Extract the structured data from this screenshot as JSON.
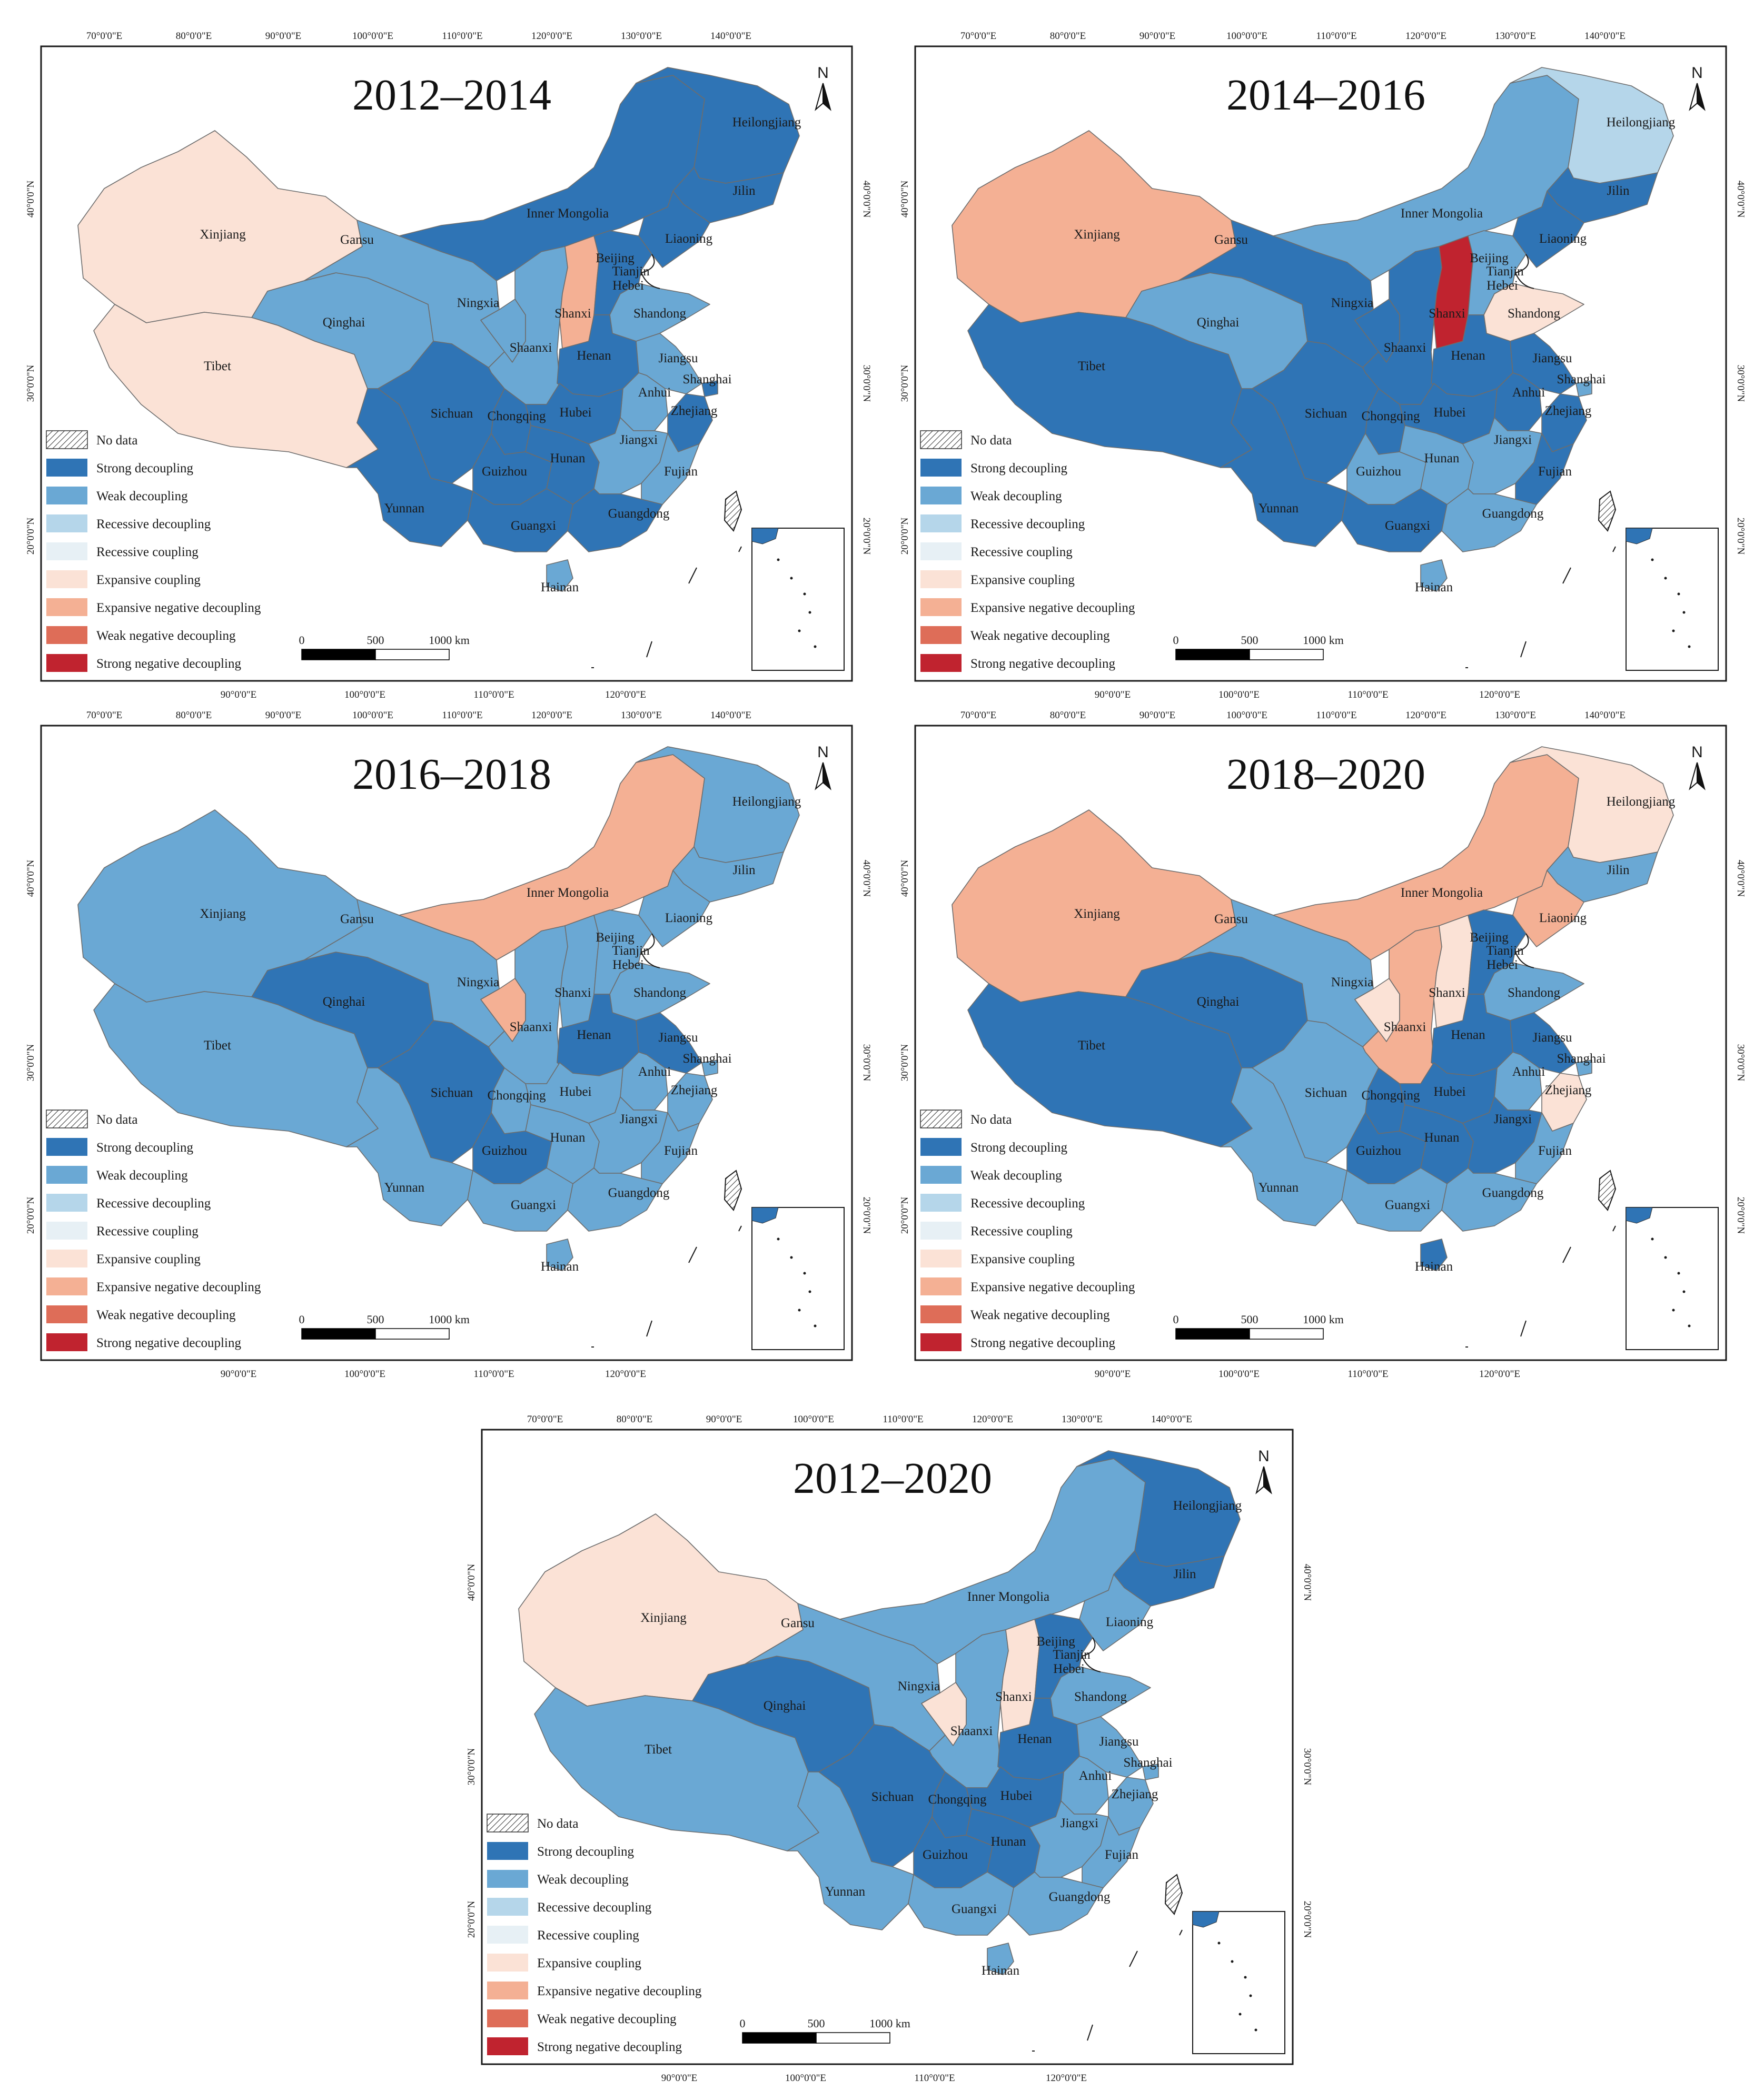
{
  "figure": {
    "longitude_ticks_top": [
      "70°0'0\"E",
      "80°0'0\"E",
      "90°0'0\"E",
      "100°0'0\"E",
      "110°0'0\"E",
      "120°0'0\"E",
      "130°0'0\"E",
      "140°0'0\"E"
    ],
    "longitude_ticks_bottom": [
      "90°0'0\"E",
      "100°0'0\"E",
      "110°0'0\"E",
      "120°0'0\"E"
    ],
    "latitude_ticks": [
      "40°0'0\"N",
      "30°0'0\"N",
      "20°0'0\"N"
    ],
    "north_label": "N",
    "scale_bar": {
      "zero": "0",
      "mid": "500",
      "end": "1000 km"
    }
  },
  "legend": [
    {
      "key": "nodata",
      "label": "No data",
      "color": "hatch"
    },
    {
      "key": "SD",
      "label": "Strong decoupling",
      "color": "#2f74b5"
    },
    {
      "key": "WD",
      "label": "Weak decoupling",
      "color": "#6aa8d4"
    },
    {
      "key": "RD",
      "label": "Recessive decoupling",
      "color": "#b5d6ea"
    },
    {
      "key": "RC",
      "label": "Recessive coupling",
      "color": "#e7f0f5"
    },
    {
      "key": "EC",
      "label": "Expansive coupling",
      "color": "#fbe2d6"
    },
    {
      "key": "END",
      "label": "Expansive negative decoupling",
      "color": "#f4b094"
    },
    {
      "key": "WND",
      "label": "Weak negative decoupling",
      "color": "#de6d58"
    },
    {
      "key": "SND",
      "label": "Strong negative decoupling",
      "color": "#c0232f"
    }
  ],
  "panels": [
    {
      "title": "2012–2014",
      "status": {
        "Xinjiang": "EC",
        "Tibet": "EC",
        "Gansu": "WD",
        "Qinghai": "WD",
        "Ningxia": "WD",
        "Shaanxi": "WD",
        "Shanxi": "END",
        "Inner Mongolia": "SD",
        "Heilongjiang": "SD",
        "Jilin": "SD",
        "Liaoning": "SD",
        "Beijing": "SD",
        "Tianjin": "SD",
        "Hebei": "SD",
        "Shandong": "WD",
        "Henan": "SD",
        "Jiangsu": "WD",
        "Shanghai": "SD",
        "Anhui": "WD",
        "Zhejiang": "SD",
        "Hubei": "SD",
        "Sichuan": "SD",
        "Chongqing": "SD",
        "Hunan": "SD",
        "Jiangxi": "WD",
        "Fujian": "WD",
        "Guizhou": "SD",
        "Yunnan": "SD",
        "Guangxi": "SD",
        "Guangdong": "SD",
        "Hainan": "WD"
      }
    },
    {
      "title": "2014–2016",
      "status": {
        "Xinjiang": "END",
        "Tibet": "SD",
        "Gansu": "SD",
        "Qinghai": "WD",
        "Ningxia": "SD",
        "Shaanxi": "SD",
        "Shanxi": "SND",
        "Inner Mongolia": "WD",
        "Heilongjiang": "RD",
        "Jilin": "SD",
        "Liaoning": "SD",
        "Beijing": "WD",
        "Tianjin": "SD",
        "Hebei": "WD",
        "Shandong": "EC",
        "Henan": "SD",
        "Jiangsu": "SD",
        "Shanghai": "WD",
        "Anhui": "SD",
        "Zhejiang": "SD",
        "Hubei": "SD",
        "Sichuan": "SD",
        "Chongqing": "SD",
        "Hunan": "WD",
        "Jiangxi": "WD",
        "Fujian": "SD",
        "Guizhou": "WD",
        "Yunnan": "SD",
        "Guangxi": "SD",
        "Guangdong": "WD",
        "Hainan": "WD"
      }
    },
    {
      "title": "2016–2018",
      "status": {
        "Xinjiang": "WD",
        "Tibet": "WD",
        "Gansu": "WD",
        "Qinghai": "SD",
        "Ningxia": "END",
        "Shaanxi": "WD",
        "Shanxi": "WD",
        "Inner Mongolia": "END",
        "Heilongjiang": "WD",
        "Jilin": "WD",
        "Liaoning": "WD",
        "Beijing": "WD",
        "Tianjin": "WD",
        "Hebei": "WD",
        "Shandong": "WD",
        "Henan": "SD",
        "Jiangsu": "SD",
        "Shanghai": "WD",
        "Anhui": "WD",
        "Zhejiang": "WD",
        "Hubei": "WD",
        "Sichuan": "SD",
        "Chongqing": "WD",
        "Hunan": "WD",
        "Jiangxi": "WD",
        "Fujian": "WD",
        "Guizhou": "SD",
        "Yunnan": "WD",
        "Guangxi": "WD",
        "Guangdong": "WD",
        "Hainan": "WD"
      }
    },
    {
      "title": "2018–2020",
      "status": {
        "Xinjiang": "END",
        "Tibet": "SD",
        "Gansu": "WD",
        "Qinghai": "SD",
        "Ningxia": "EC",
        "Shaanxi": "END",
        "Shanxi": "EC",
        "Inner Mongolia": "END",
        "Heilongjiang": "EC",
        "Jilin": "WD",
        "Liaoning": "END",
        "Beijing": "SD",
        "Tianjin": "SD",
        "Hebei": "SD",
        "Shandong": "WD",
        "Henan": "SD",
        "Jiangsu": "SD",
        "Shanghai": "WD",
        "Anhui": "WD",
        "Zhejiang": "EC",
        "Hubei": "SD",
        "Sichuan": "WD",
        "Chongqing": "SD",
        "Hunan": "SD",
        "Jiangxi": "SD",
        "Fujian": "WD",
        "Guizhou": "SD",
        "Yunnan": "WD",
        "Guangxi": "WD",
        "Guangdong": "WD",
        "Hainan": "SD"
      }
    },
    {
      "title": "2012–2020",
      "status": {
        "Xinjiang": "EC",
        "Tibet": "WD",
        "Gansu": "WD",
        "Qinghai": "SD",
        "Ningxia": "EC",
        "Shaanxi": "WD",
        "Shanxi": "EC",
        "Inner Mongolia": "WD",
        "Heilongjiang": "SD",
        "Jilin": "SD",
        "Liaoning": "WD",
        "Beijing": "SD",
        "Tianjin": "SD",
        "Hebei": "SD",
        "Shandong": "WD",
        "Henan": "SD",
        "Jiangsu": "WD",
        "Shanghai": "WD",
        "Anhui": "WD",
        "Zhejiang": "WD",
        "Hubei": "SD",
        "Sichuan": "SD",
        "Chongqing": "SD",
        "Hunan": "SD",
        "Jiangxi": "WD",
        "Fujian": "WD",
        "Guizhou": "SD",
        "Yunnan": "WD",
        "Guangxi": "WD",
        "Guangdong": "WD",
        "Hainan": "WD"
      }
    }
  ]
}
